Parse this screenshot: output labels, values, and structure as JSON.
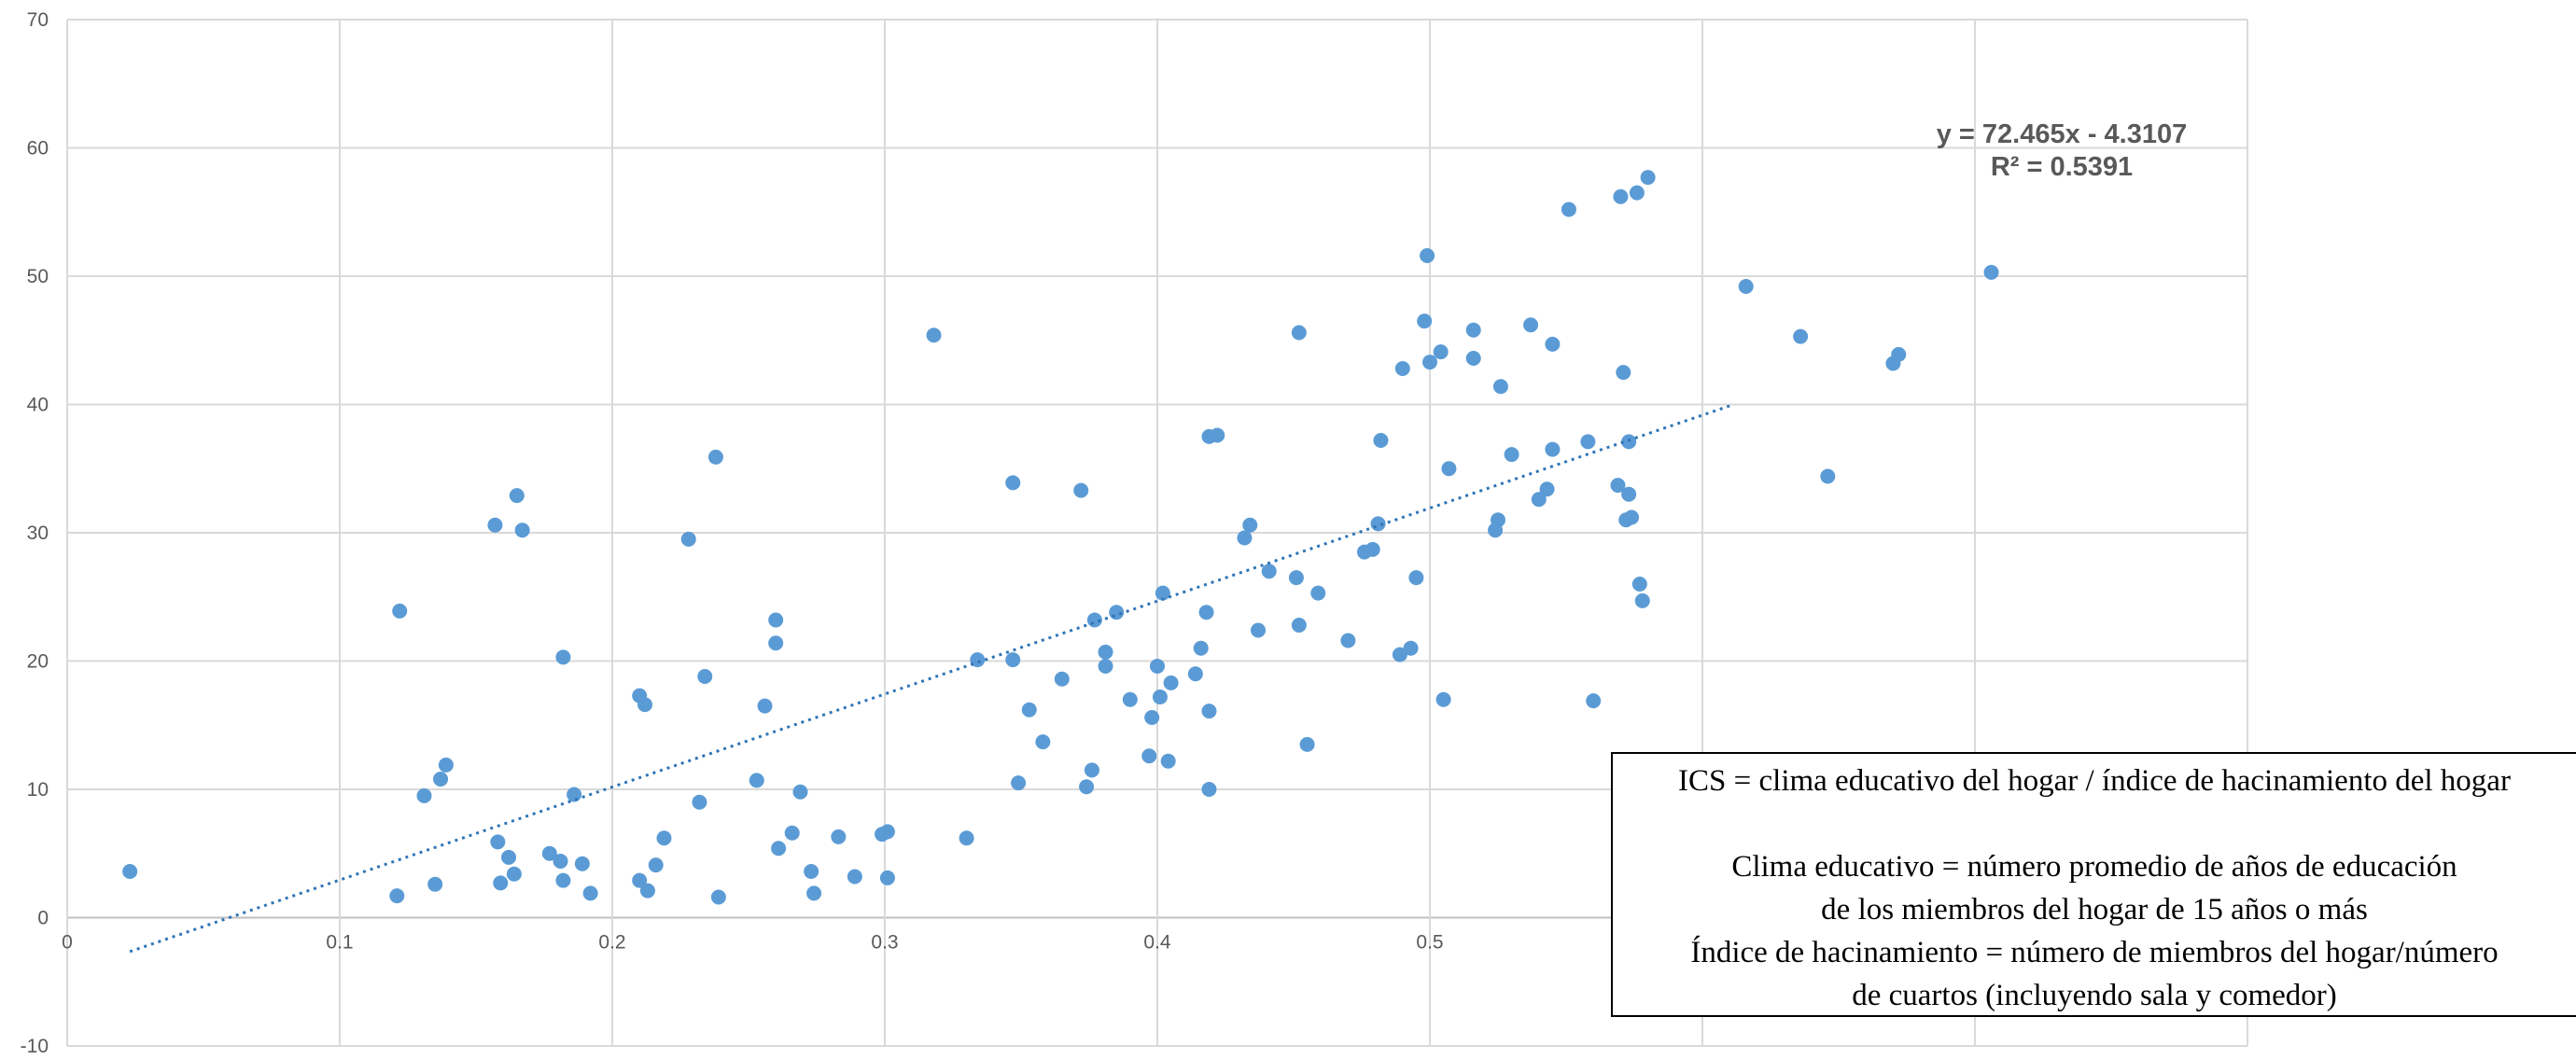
{
  "chart_data": {
    "type": "scatter",
    "title": "",
    "xlabel": "",
    "ylabel": "",
    "xlim": [
      0,
      0.8
    ],
    "ylim": [
      -10,
      70
    ],
    "x_ticks": [
      "0",
      "0.1",
      "0.2",
      "0.3",
      "0.4",
      "0.5"
    ],
    "y_ticks": [
      "-10",
      "0",
      "10",
      "20",
      "30",
      "40",
      "50",
      "60",
      "70"
    ],
    "grid": true,
    "marker_color": "#5b9bd5",
    "trend_color": "#2e75b6",
    "trendline": {
      "type": "linear",
      "slope": 72.465,
      "intercept": -4.3107,
      "x_range": [
        0.023,
        0.61
      ],
      "equation_label": "y = 72.465x - 4.3107",
      "r2_label": "R² = 0.5391"
    },
    "points": [
      [
        0.023,
        3.6
      ],
      [
        0.121,
        1.7
      ],
      [
        0.122,
        23.9
      ],
      [
        0.131,
        9.5
      ],
      [
        0.135,
        2.6
      ],
      [
        0.137,
        10.8
      ],
      [
        0.139,
        11.9
      ],
      [
        0.157,
        30.6
      ],
      [
        0.158,
        5.9
      ],
      [
        0.159,
        2.7
      ],
      [
        0.162,
        4.7
      ],
      [
        0.164,
        3.4
      ],
      [
        0.165,
        32.9
      ],
      [
        0.167,
        30.2
      ],
      [
        0.177,
        5.0
      ],
      [
        0.181,
        4.4
      ],
      [
        0.182,
        20.3
      ],
      [
        0.182,
        2.9
      ],
      [
        0.186,
        9.6
      ],
      [
        0.189,
        4.2
      ],
      [
        0.192,
        1.9
      ],
      [
        0.21,
        17.3
      ],
      [
        0.21,
        2.9
      ],
      [
        0.212,
        16.6
      ],
      [
        0.213,
        2.1
      ],
      [
        0.216,
        4.1
      ],
      [
        0.219,
        6.2
      ],
      [
        0.228,
        29.5
      ],
      [
        0.232,
        9.0
      ],
      [
        0.234,
        18.8
      ],
      [
        0.238,
        35.9
      ],
      [
        0.239,
        1.6
      ],
      [
        0.253,
        10.7
      ],
      [
        0.256,
        16.5
      ],
      [
        0.26,
        23.2
      ],
      [
        0.26,
        21.4
      ],
      [
        0.261,
        5.4
      ],
      [
        0.266,
        6.6
      ],
      [
        0.269,
        9.8
      ],
      [
        0.273,
        3.6
      ],
      [
        0.274,
        1.9
      ],
      [
        0.283,
        6.3
      ],
      [
        0.289,
        3.2
      ],
      [
        0.299,
        6.5
      ],
      [
        0.301,
        6.7
      ],
      [
        0.301,
        3.1
      ],
      [
        0.318,
        45.4
      ],
      [
        0.33,
        6.2
      ],
      [
        0.334,
        20.1
      ],
      [
        0.347,
        33.9
      ],
      [
        0.347,
        20.1
      ],
      [
        0.349,
        10.5
      ],
      [
        0.353,
        16.2
      ],
      [
        0.358,
        13.7
      ],
      [
        0.365,
        18.6
      ],
      [
        0.372,
        33.3
      ],
      [
        0.374,
        10.2
      ],
      [
        0.376,
        11.5
      ],
      [
        0.377,
        23.2
      ],
      [
        0.381,
        20.7
      ],
      [
        0.381,
        19.6
      ],
      [
        0.385,
        23.8
      ],
      [
        0.39,
        17.0
      ],
      [
        0.397,
        12.6
      ],
      [
        0.398,
        15.6
      ],
      [
        0.4,
        19.6
      ],
      [
        0.401,
        17.2
      ],
      [
        0.402,
        25.3
      ],
      [
        0.404,
        12.2
      ],
      [
        0.405,
        18.3
      ],
      [
        0.414,
        19.0
      ],
      [
        0.416,
        21.0
      ],
      [
        0.418,
        23.8
      ],
      [
        0.419,
        16.1
      ],
      [
        0.419,
        37.5
      ],
      [
        0.419,
        10.0
      ],
      [
        0.422,
        37.6
      ],
      [
        0.432,
        29.6
      ],
      [
        0.434,
        30.6
      ],
      [
        0.437,
        22.4
      ],
      [
        0.441,
        27.0
      ],
      [
        0.451,
        26.5
      ],
      [
        0.452,
        22.8
      ],
      [
        0.452,
        45.6
      ],
      [
        0.455,
        13.5
      ],
      [
        0.459,
        25.3
      ],
      [
        0.47,
        21.6
      ],
      [
        0.476,
        28.5
      ],
      [
        0.479,
        28.7
      ],
      [
        0.481,
        30.7
      ],
      [
        0.482,
        37.2
      ],
      [
        0.489,
        20.5
      ],
      [
        0.49,
        42.8
      ],
      [
        0.493,
        21.0
      ],
      [
        0.495,
        26.5
      ],
      [
        0.498,
        46.5
      ],
      [
        0.499,
        51.6
      ],
      [
        0.5,
        43.3
      ],
      [
        0.504,
        44.1
      ],
      [
        0.505,
        17.0
      ],
      [
        0.507,
        35.0
      ],
      [
        0.516,
        45.8
      ],
      [
        0.516,
        43.6
      ],
      [
        0.524,
        30.2
      ],
      [
        0.525,
        31.0
      ],
      [
        0.526,
        41.4
      ],
      [
        0.53,
        36.1
      ],
      [
        0.537,
        46.2
      ],
      [
        0.54,
        32.6
      ],
      [
        0.543,
        33.4
      ],
      [
        0.545,
        44.7
      ],
      [
        0.545,
        36.5
      ],
      [
        0.551,
        55.2
      ],
      [
        0.558,
        37.1
      ],
      [
        0.56,
        16.9
      ],
      [
        0.569,
        33.7
      ],
      [
        0.57,
        56.2
      ],
      [
        0.571,
        42.5
      ],
      [
        0.572,
        31.0
      ],
      [
        0.573,
        33.0
      ],
      [
        0.573,
        37.1
      ],
      [
        0.574,
        31.2
      ],
      [
        0.576,
        56.5
      ],
      [
        0.577,
        26.0
      ],
      [
        0.578,
        24.7
      ],
      [
        0.58,
        57.7
      ],
      [
        0.616,
        49.2
      ],
      [
        0.636,
        45.3
      ],
      [
        0.646,
        34.4
      ],
      [
        0.67,
        43.2
      ],
      [
        0.672,
        43.9
      ],
      [
        0.706,
        50.3
      ]
    ]
  },
  "note": {
    "line1_prefix": "ICS",
    "line1_rest": " = clima educativo del hogar / índice de hacinamiento del hogar",
    "line2": "Clima educativo = número promedio de años de educación",
    "line3": "de los miembros del hogar de 15 años o más",
    "line4": "Índice de hacinamiento = número de miembros del hogar/número",
    "line5": "de cuartos (incluyendo sala y comedor)"
  }
}
